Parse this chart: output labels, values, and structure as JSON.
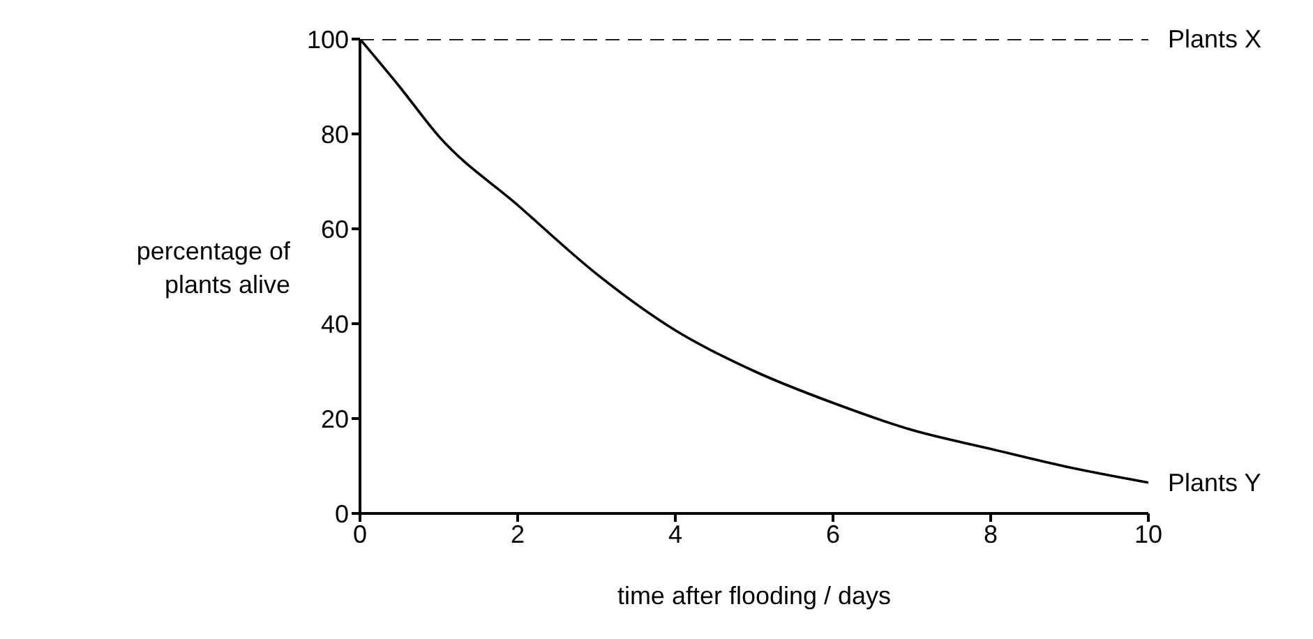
{
  "chart_data": {
    "type": "line",
    "xlabel": "time after flooding / days",
    "ylabel": "percentage of plants alive",
    "xlim": [
      0,
      10
    ],
    "xticks": [
      0,
      2,
      4,
      6,
      8,
      10
    ],
    "ylim": [
      0,
      100
    ],
    "yticks": [
      0,
      20,
      40,
      60,
      80,
      100
    ],
    "grid": false,
    "legend": false,
    "marker": "none",
    "series": [
      {
        "name": "Plants X",
        "color": "#000000",
        "line_style": "dashed",
        "x": [
          0,
          10
        ],
        "values": [
          100,
          100
        ]
      },
      {
        "name": "Plants Y",
        "color": "#000000",
        "line_style": "solid",
        "x": [
          0,
          0.5,
          1,
          2,
          3,
          4,
          5,
          6,
          7,
          8,
          9,
          10
        ],
        "values": [
          100,
          90,
          79.5,
          65,
          50.5,
          38.6,
          30,
          23.3,
          17.6,
          13.6,
          9.7,
          6.5
        ]
      }
    ]
  }
}
